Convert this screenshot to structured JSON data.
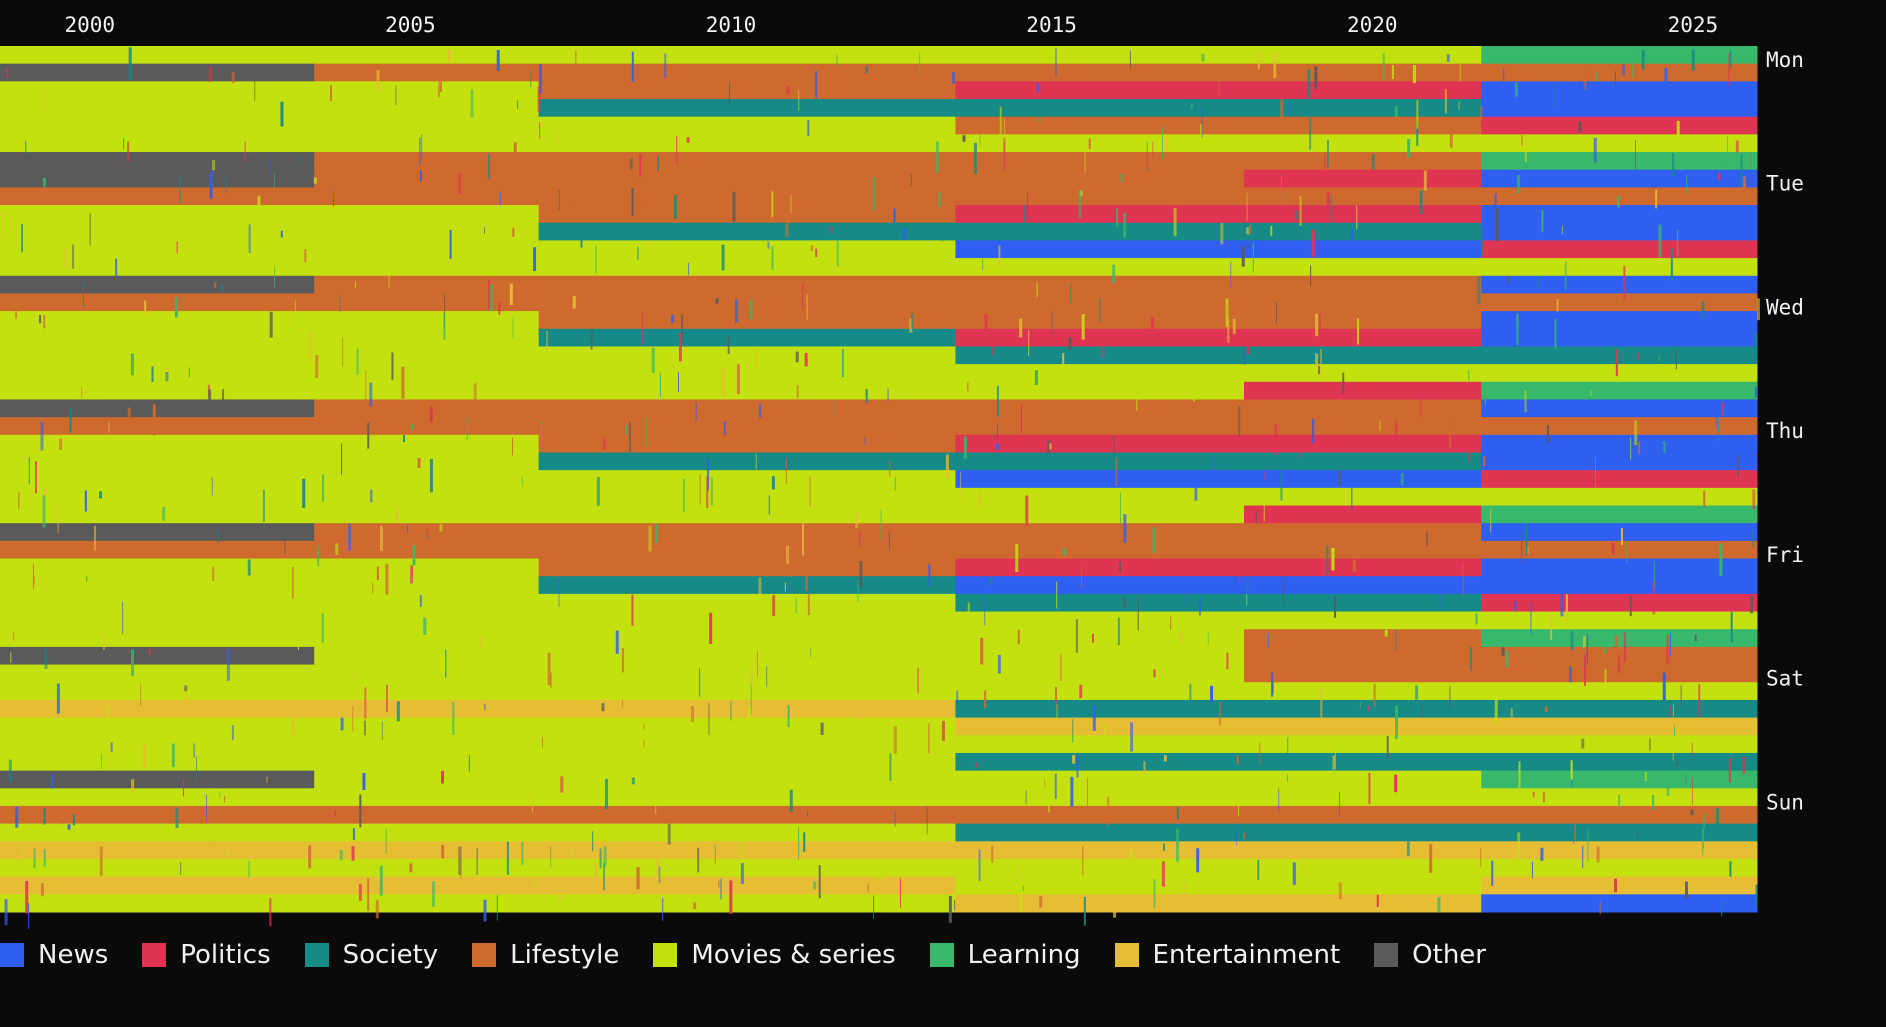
{
  "chart_data": {
    "type": "heatmap",
    "title": "",
    "x_axis": {
      "ticks": [
        "2000",
        "2005",
        "2010",
        "2015",
        "2020",
        "2025"
      ],
      "tick_values": [
        2000,
        2005,
        2010,
        2015,
        2020,
        2025
      ],
      "range": [
        1998.6,
        2026.0
      ],
      "position": "top"
    },
    "y_axis": {
      "ticks": [
        "Mon",
        "Tue",
        "Wed",
        "Thu",
        "Fri",
        "Sat",
        "Sun"
      ],
      "position": "right",
      "rows_per_day": 7
    },
    "categories": [
      {
        "name": "News",
        "color": "#2f5ff0"
      },
      {
        "name": "Politics",
        "color": "#e03552"
      },
      {
        "name": "Society",
        "color": "#168a86"
      },
      {
        "name": "Lifestyle",
        "color": "#cf6a2f"
      },
      {
        "name": "Movies & series",
        "color": "#c3e10f"
      },
      {
        "name": "Learning",
        "color": "#38b86a"
      },
      {
        "name": "Entertainment",
        "color": "#e6be34"
      },
      {
        "name": "Other",
        "color": "#5a5a5a"
      }
    ],
    "era_boundaries": [
      2003.5,
      2007.0,
      2013.5,
      2018.0,
      2021.7,
      2022.5
    ],
    "rows": [
      {
        "day": "Mon",
        "segments": [
          [
            1998.6,
            2003.5,
            "Movies & series"
          ],
          [
            2003.5,
            2021.7,
            "Movies & series"
          ],
          [
            2021.7,
            2026.0,
            "Learning"
          ]
        ]
      },
      {
        "day": "Mon",
        "segments": [
          [
            1998.6,
            2003.5,
            "Other"
          ],
          [
            2003.5,
            2021.7,
            "Lifestyle"
          ],
          [
            2021.7,
            2026.0,
            "Lifestyle"
          ]
        ]
      },
      {
        "day": "Mon",
        "segments": [
          [
            1998.6,
            2007.0,
            "Movies & series"
          ],
          [
            2007.0,
            2013.5,
            "Lifestyle"
          ],
          [
            2013.5,
            2021.7,
            "Politics"
          ],
          [
            2021.7,
            2026.0,
            "News"
          ]
        ]
      },
      {
        "day": "Mon",
        "segments": [
          [
            1998.6,
            2007.0,
            "Movies & series"
          ],
          [
            2007.0,
            2013.5,
            "Society"
          ],
          [
            2013.5,
            2021.7,
            "Society"
          ],
          [
            2021.7,
            2026.0,
            "News"
          ]
        ]
      },
      {
        "day": "Mon",
        "segments": [
          [
            1998.6,
            2013.5,
            "Movies & series"
          ],
          [
            2013.5,
            2021.7,
            "Lifestyle"
          ],
          [
            2021.7,
            2026.0,
            "Politics"
          ]
        ]
      },
      {
        "day": "Mon",
        "segments": [
          [
            1998.6,
            2026.0,
            "Movies & series"
          ]
        ]
      },
      {
        "day": "Mon",
        "segments": [
          [
            1998.6,
            2003.5,
            "Other"
          ],
          [
            2003.5,
            2021.7,
            "Lifestyle"
          ],
          [
            2021.7,
            2026.0,
            "Learning"
          ]
        ]
      },
      {
        "day": "Tue",
        "segments": [
          [
            1998.6,
            2003.5,
            "Other"
          ],
          [
            2003.5,
            2018.0,
            "Lifestyle"
          ],
          [
            2018.0,
            2021.7,
            "Politics"
          ],
          [
            2021.7,
            2026.0,
            "News"
          ]
        ]
      },
      {
        "day": "Tue",
        "segments": [
          [
            1998.6,
            2003.5,
            "Lifestyle"
          ],
          [
            2003.5,
            2021.7,
            "Lifestyle"
          ],
          [
            2021.7,
            2026.0,
            "Lifestyle"
          ]
        ]
      },
      {
        "day": "Tue",
        "segments": [
          [
            1998.6,
            2007.0,
            "Movies & series"
          ],
          [
            2007.0,
            2013.5,
            "Lifestyle"
          ],
          [
            2013.5,
            2021.7,
            "Politics"
          ],
          [
            2021.7,
            2026.0,
            "News"
          ]
        ]
      },
      {
        "day": "Tue",
        "segments": [
          [
            1998.6,
            2007.0,
            "Movies & series"
          ],
          [
            2007.0,
            2021.7,
            "Society"
          ],
          [
            2021.7,
            2026.0,
            "News"
          ]
        ]
      },
      {
        "day": "Tue",
        "segments": [
          [
            1998.6,
            2013.5,
            "Movies & series"
          ],
          [
            2013.5,
            2021.7,
            "News"
          ],
          [
            2021.7,
            2026.0,
            "Politics"
          ]
        ]
      },
      {
        "day": "Tue",
        "segments": [
          [
            1998.6,
            2026.0,
            "Movies & series"
          ]
        ]
      },
      {
        "day": "Tue",
        "segments": [
          [
            1998.6,
            2003.5,
            "Other"
          ],
          [
            2003.5,
            2021.7,
            "Lifestyle"
          ],
          [
            2021.7,
            2026.0,
            "News"
          ]
        ]
      },
      {
        "day": "Wed",
        "segments": [
          [
            1998.6,
            2003.5,
            "Lifestyle"
          ],
          [
            2003.5,
            2021.7,
            "Lifestyle"
          ],
          [
            2021.7,
            2026.0,
            "Lifestyle"
          ]
        ]
      },
      {
        "day": "Wed",
        "segments": [
          [
            1998.6,
            2007.0,
            "Movies & series"
          ],
          [
            2007.0,
            2013.5,
            "Lifestyle"
          ],
          [
            2013.5,
            2021.7,
            "Lifestyle"
          ],
          [
            2021.7,
            2026.0,
            "News"
          ]
        ]
      },
      {
        "day": "Wed",
        "segments": [
          [
            1998.6,
            2007.0,
            "Movies & series"
          ],
          [
            2007.0,
            2013.5,
            "Society"
          ],
          [
            2013.5,
            2021.7,
            "Politics"
          ],
          [
            2021.7,
            2026.0,
            "News"
          ]
        ]
      },
      {
        "day": "Wed",
        "segments": [
          [
            1998.6,
            2013.5,
            "Movies & series"
          ],
          [
            2013.5,
            2021.7,
            "Society"
          ],
          [
            2021.7,
            2026.0,
            "Society"
          ]
        ]
      },
      {
        "day": "Wed",
        "segments": [
          [
            1998.6,
            2026.0,
            "Movies & series"
          ]
        ]
      },
      {
        "day": "Wed",
        "segments": [
          [
            1998.6,
            2018.0,
            "Movies & series"
          ],
          [
            2018.0,
            2021.7,
            "Politics"
          ],
          [
            2021.7,
            2026.0,
            "Learning"
          ]
        ]
      },
      {
        "day": "Wed",
        "segments": [
          [
            1998.6,
            2003.5,
            "Other"
          ],
          [
            2003.5,
            2021.7,
            "Lifestyle"
          ],
          [
            2021.7,
            2026.0,
            "News"
          ]
        ]
      },
      {
        "day": "Thu",
        "segments": [
          [
            1998.6,
            2003.5,
            "Lifestyle"
          ],
          [
            2003.5,
            2021.7,
            "Lifestyle"
          ],
          [
            2021.7,
            2026.0,
            "Lifestyle"
          ]
        ]
      },
      {
        "day": "Thu",
        "segments": [
          [
            1998.6,
            2007.0,
            "Movies & series"
          ],
          [
            2007.0,
            2013.5,
            "Lifestyle"
          ],
          [
            2013.5,
            2021.7,
            "Politics"
          ],
          [
            2021.7,
            2026.0,
            "News"
          ]
        ]
      },
      {
        "day": "Thu",
        "segments": [
          [
            1998.6,
            2007.0,
            "Movies & series"
          ],
          [
            2007.0,
            2021.7,
            "Society"
          ],
          [
            2021.7,
            2026.0,
            "News"
          ]
        ]
      },
      {
        "day": "Thu",
        "segments": [
          [
            1998.6,
            2013.5,
            "Movies & series"
          ],
          [
            2013.5,
            2021.7,
            "News"
          ],
          [
            2021.7,
            2026.0,
            "Politics"
          ]
        ]
      },
      {
        "day": "Thu",
        "segments": [
          [
            1998.6,
            2026.0,
            "Movies & series"
          ]
        ]
      },
      {
        "day": "Thu",
        "segments": [
          [
            1998.6,
            2018.0,
            "Movies & series"
          ],
          [
            2018.0,
            2021.7,
            "Politics"
          ],
          [
            2021.7,
            2026.0,
            "Learning"
          ]
        ]
      },
      {
        "day": "Thu",
        "segments": [
          [
            1998.6,
            2003.5,
            "Other"
          ],
          [
            2003.5,
            2021.7,
            "Lifestyle"
          ],
          [
            2021.7,
            2026.0,
            "News"
          ]
        ]
      },
      {
        "day": "Fri",
        "segments": [
          [
            1998.6,
            2003.5,
            "Lifestyle"
          ],
          [
            2003.5,
            2021.7,
            "Lifestyle"
          ],
          [
            2021.7,
            2026.0,
            "Lifestyle"
          ]
        ]
      },
      {
        "day": "Fri",
        "segments": [
          [
            1998.6,
            2007.0,
            "Movies & series"
          ],
          [
            2007.0,
            2013.5,
            "Lifestyle"
          ],
          [
            2013.5,
            2021.7,
            "Politics"
          ],
          [
            2021.7,
            2026.0,
            "News"
          ]
        ]
      },
      {
        "day": "Fri",
        "segments": [
          [
            1998.6,
            2007.0,
            "Movies & series"
          ],
          [
            2007.0,
            2013.5,
            "Society"
          ],
          [
            2013.5,
            2021.7,
            "News"
          ],
          [
            2021.7,
            2026.0,
            "News"
          ]
        ]
      },
      {
        "day": "Fri",
        "segments": [
          [
            1998.6,
            2013.5,
            "Movies & series"
          ],
          [
            2013.5,
            2021.7,
            "Society"
          ],
          [
            2021.7,
            2026.0,
            "Politics"
          ]
        ]
      },
      {
        "day": "Fri",
        "segments": [
          [
            1998.6,
            2026.0,
            "Movies & series"
          ]
        ]
      },
      {
        "day": "Fri",
        "segments": [
          [
            1998.6,
            2018.0,
            "Movies & series"
          ],
          [
            2018.0,
            2021.7,
            "Lifestyle"
          ],
          [
            2021.7,
            2026.0,
            "Learning"
          ]
        ]
      },
      {
        "day": "Fri",
        "segments": [
          [
            1998.6,
            2003.5,
            "Other"
          ],
          [
            2003.5,
            2018.0,
            "Movies & series"
          ],
          [
            2018.0,
            2026.0,
            "Lifestyle"
          ]
        ]
      },
      {
        "day": "Sat",
        "segments": [
          [
            1998.6,
            2018.0,
            "Movies & series"
          ],
          [
            2018.0,
            2021.7,
            "Lifestyle"
          ],
          [
            2021.7,
            2026.0,
            "Lifestyle"
          ]
        ]
      },
      {
        "day": "Sat",
        "segments": [
          [
            1998.6,
            2026.0,
            "Movies & series"
          ]
        ]
      },
      {
        "day": "Sat",
        "segments": [
          [
            1998.6,
            2013.5,
            "Entertainment"
          ],
          [
            2013.5,
            2021.7,
            "Society"
          ],
          [
            2021.7,
            2026.0,
            "Society"
          ]
        ]
      },
      {
        "day": "Sat",
        "segments": [
          [
            1998.6,
            2013.5,
            "Movies & series"
          ],
          [
            2013.5,
            2026.0,
            "Entertainment"
          ]
        ]
      },
      {
        "day": "Sat",
        "segments": [
          [
            1998.6,
            2026.0,
            "Movies & series"
          ]
        ]
      },
      {
        "day": "Sat",
        "segments": [
          [
            1998.6,
            2013.5,
            "Movies & series"
          ],
          [
            2013.5,
            2021.7,
            "Society"
          ],
          [
            2021.7,
            2026.0,
            "Society"
          ]
        ]
      },
      {
        "day": "Sat",
        "segments": [
          [
            1998.6,
            2003.5,
            "Other"
          ],
          [
            2003.5,
            2021.7,
            "Movies & series"
          ],
          [
            2021.7,
            2026.0,
            "Learning"
          ]
        ]
      },
      {
        "day": "Sun",
        "segments": [
          [
            1998.6,
            2026.0,
            "Movies & series"
          ]
        ]
      },
      {
        "day": "Sun",
        "segments": [
          [
            1998.6,
            2018.0,
            "Lifestyle"
          ],
          [
            2018.0,
            2021.7,
            "Lifestyle"
          ],
          [
            2021.7,
            2026.0,
            "Lifestyle"
          ]
        ]
      },
      {
        "day": "Sun",
        "segments": [
          [
            1998.6,
            2013.5,
            "Movies & series"
          ],
          [
            2013.5,
            2021.7,
            "Society"
          ],
          [
            2021.7,
            2026.0,
            "Society"
          ]
        ]
      },
      {
        "day": "Sun",
        "segments": [
          [
            1998.6,
            2026.0,
            "Entertainment"
          ]
        ]
      },
      {
        "day": "Sun",
        "segments": [
          [
            1998.6,
            2026.0,
            "Movies & series"
          ]
        ]
      },
      {
        "day": "Sun",
        "segments": [
          [
            1998.6,
            2013.5,
            "Entertainment"
          ],
          [
            2013.5,
            2021.7,
            "Movies & series"
          ],
          [
            2021.7,
            2026.0,
            "Entertainment"
          ]
        ]
      },
      {
        "day": "Sun",
        "segments": [
          [
            1998.6,
            2013.5,
            "Movies & series"
          ],
          [
            2013.5,
            2021.7,
            "Entertainment"
          ],
          [
            2021.7,
            2026.0,
            "News"
          ]
        ]
      }
    ],
    "grid": false,
    "legend_position": "bottom-left"
  }
}
